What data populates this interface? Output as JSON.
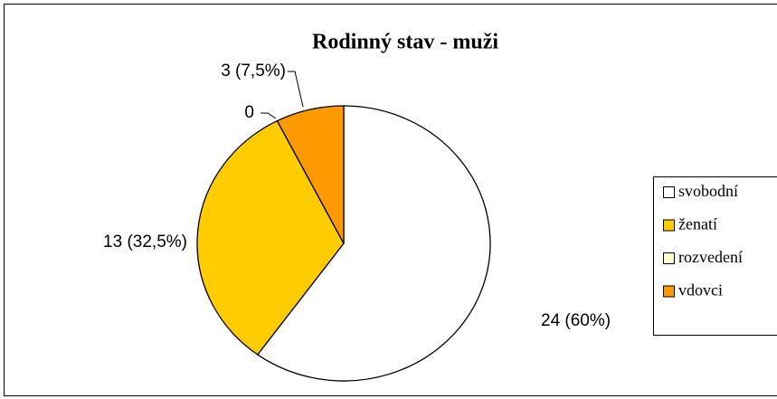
{
  "chart_data": {
    "type": "pie",
    "title": "Rodinný stav - muži",
    "categories": [
      "svobodní",
      "ženatí",
      "rozvedení",
      "vdovci"
    ],
    "values": [
      24,
      13,
      0,
      3
    ],
    "value_labels": [
      "24 (60%)",
      "13 (32,5%)",
      "0",
      "3 (7,5%)"
    ],
    "colors": [
      "#FFFFFF",
      "#FFCC00",
      "#FFFFCC",
      "#FF9900"
    ],
    "legend": "right"
  }
}
